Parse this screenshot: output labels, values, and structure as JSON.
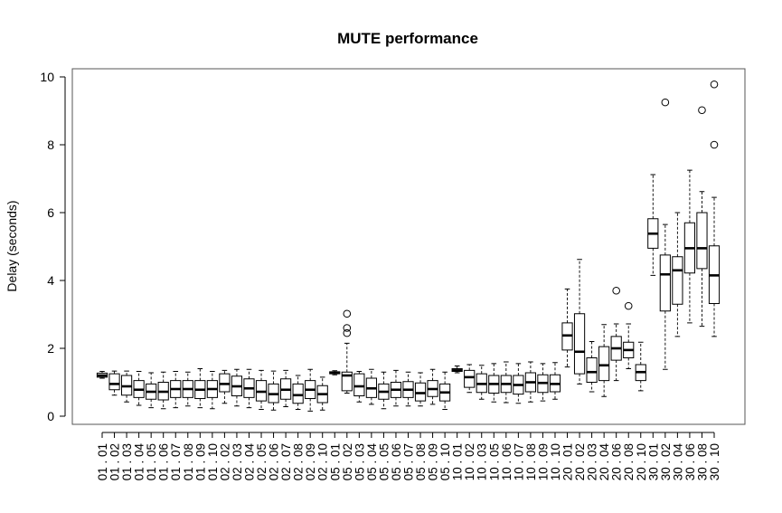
{
  "chart_data": {
    "type": "boxplot",
    "title": "MUTE performance",
    "xlabel": "",
    "ylabel": "Delay (seconds)",
    "ylim": [
      0,
      10
    ],
    "yticks": [
      0,
      2,
      4,
      6,
      8,
      10
    ],
    "grid": false,
    "categories": [
      "01 . 01",
      "01 . 02",
      "01 . 03",
      "01 . 04",
      "01 . 05",
      "01 . 06",
      "01 . 07",
      "01 . 08",
      "01 . 09",
      "01 . 10",
      "02 . 02",
      "02 . 03",
      "02 . 04",
      "02 . 05",
      "02 . 06",
      "02 . 07",
      "02 . 08",
      "02 . 09",
      "02 . 10",
      "05 . 01",
      "05 . 02",
      "05 . 03",
      "05 . 04",
      "05 . 05",
      "05 . 06",
      "05 . 07",
      "05 . 08",
      "05 . 09",
      "05 . 10",
      "10 . 01",
      "10 . 02",
      "10 . 03",
      "10 . 05",
      "10 . 06",
      "10 . 07",
      "10 . 08",
      "10 . 09",
      "10 . 10",
      "20 . 01",
      "20 . 02",
      "20 . 03",
      "20 . 04",
      "20 . 06",
      "20 . 08",
      "20 . 10",
      "30 . 01",
      "30 . 02",
      "30 . 04",
      "30 . 06",
      "30 . 08",
      "30 . 10"
    ],
    "boxes": [
      {
        "min": 1.12,
        "q1": 1.15,
        "median": 1.2,
        "q3": 1.27,
        "max": 1.32,
        "outliers": []
      },
      {
        "min": 0.62,
        "q1": 0.78,
        "median": 0.95,
        "q3": 1.25,
        "max": 1.33,
        "outliers": []
      },
      {
        "min": 0.42,
        "q1": 0.62,
        "median": 0.88,
        "q3": 1.2,
        "max": 1.33,
        "outliers": []
      },
      {
        "min": 0.32,
        "q1": 0.55,
        "median": 0.78,
        "q3": 1.05,
        "max": 1.32,
        "outliers": []
      },
      {
        "min": 0.25,
        "q1": 0.5,
        "median": 0.72,
        "q3": 0.95,
        "max": 1.28,
        "outliers": []
      },
      {
        "min": 0.22,
        "q1": 0.48,
        "median": 0.72,
        "q3": 1.0,
        "max": 1.3,
        "outliers": []
      },
      {
        "min": 0.25,
        "q1": 0.55,
        "median": 0.8,
        "q3": 1.05,
        "max": 1.32,
        "outliers": []
      },
      {
        "min": 0.3,
        "q1": 0.55,
        "median": 0.8,
        "q3": 1.05,
        "max": 1.3,
        "outliers": []
      },
      {
        "min": 0.25,
        "q1": 0.52,
        "median": 0.78,
        "q3": 1.05,
        "max": 1.4,
        "outliers": []
      },
      {
        "min": 0.22,
        "q1": 0.55,
        "median": 0.8,
        "q3": 1.05,
        "max": 1.32,
        "outliers": []
      },
      {
        "min": 0.38,
        "q1": 0.72,
        "median": 0.95,
        "q3": 1.25,
        "max": 1.35,
        "outliers": []
      },
      {
        "min": 0.3,
        "q1": 0.6,
        "median": 0.88,
        "q3": 1.18,
        "max": 1.38,
        "outliers": []
      },
      {
        "min": 0.25,
        "q1": 0.55,
        "median": 0.82,
        "q3": 1.1,
        "max": 1.38,
        "outliers": []
      },
      {
        "min": 0.2,
        "q1": 0.45,
        "median": 0.72,
        "q3": 1.05,
        "max": 1.35,
        "outliers": []
      },
      {
        "min": 0.18,
        "q1": 0.4,
        "median": 0.65,
        "q3": 0.95,
        "max": 1.33,
        "outliers": []
      },
      {
        "min": 0.28,
        "q1": 0.5,
        "median": 0.78,
        "q3": 1.1,
        "max": 1.35,
        "outliers": []
      },
      {
        "min": 0.2,
        "q1": 0.38,
        "median": 0.62,
        "q3": 0.95,
        "max": 1.2,
        "outliers": []
      },
      {
        "min": 0.15,
        "q1": 0.52,
        "median": 0.78,
        "q3": 1.05,
        "max": 1.38,
        "outliers": []
      },
      {
        "min": 0.18,
        "q1": 0.4,
        "median": 0.65,
        "q3": 0.9,
        "max": 1.15,
        "outliers": []
      },
      {
        "min": 1.22,
        "q1": 1.25,
        "median": 1.28,
        "q3": 1.31,
        "max": 1.34,
        "outliers": []
      },
      {
        "min": 0.68,
        "q1": 0.75,
        "median": 1.2,
        "q3": 1.3,
        "max": 2.15,
        "outliers": [
          2.45,
          2.6,
          3.02
        ]
      },
      {
        "min": 0.42,
        "q1": 0.6,
        "median": 0.88,
        "q3": 1.25,
        "max": 1.32,
        "outliers": []
      },
      {
        "min": 0.35,
        "q1": 0.55,
        "median": 0.82,
        "q3": 1.12,
        "max": 1.38,
        "outliers": []
      },
      {
        "min": 0.22,
        "q1": 0.5,
        "median": 0.72,
        "q3": 0.95,
        "max": 1.3,
        "outliers": []
      },
      {
        "min": 0.3,
        "q1": 0.55,
        "median": 0.78,
        "q3": 1.0,
        "max": 1.35,
        "outliers": []
      },
      {
        "min": 0.3,
        "q1": 0.55,
        "median": 0.78,
        "q3": 1.02,
        "max": 1.3,
        "outliers": []
      },
      {
        "min": 0.3,
        "q1": 0.45,
        "median": 0.68,
        "q3": 0.98,
        "max": 1.28,
        "outliers": []
      },
      {
        "min": 0.35,
        "q1": 0.58,
        "median": 0.8,
        "q3": 1.05,
        "max": 1.38,
        "outliers": []
      },
      {
        "min": 0.2,
        "q1": 0.45,
        "median": 0.7,
        "q3": 0.95,
        "max": 1.3,
        "outliers": []
      },
      {
        "min": 1.28,
        "q1": 1.32,
        "median": 1.35,
        "q3": 1.4,
        "max": 1.48,
        "outliers": []
      },
      {
        "min": 0.7,
        "q1": 0.85,
        "median": 1.15,
        "q3": 1.35,
        "max": 1.52,
        "outliers": []
      },
      {
        "min": 0.5,
        "q1": 0.7,
        "median": 0.95,
        "q3": 1.25,
        "max": 1.5,
        "outliers": []
      },
      {
        "min": 0.42,
        "q1": 0.68,
        "median": 0.95,
        "q3": 1.2,
        "max": 1.55,
        "outliers": []
      },
      {
        "min": 0.4,
        "q1": 0.7,
        "median": 0.95,
        "q3": 1.2,
        "max": 1.6,
        "outliers": []
      },
      {
        "min": 0.38,
        "q1": 0.65,
        "median": 0.92,
        "q3": 1.2,
        "max": 1.55,
        "outliers": []
      },
      {
        "min": 0.42,
        "q1": 0.72,
        "median": 1.0,
        "q3": 1.28,
        "max": 1.6,
        "outliers": []
      },
      {
        "min": 0.45,
        "q1": 0.7,
        "median": 0.98,
        "q3": 1.22,
        "max": 1.55,
        "outliers": []
      },
      {
        "min": 0.5,
        "q1": 0.72,
        "median": 0.95,
        "q3": 1.22,
        "max": 1.58,
        "outliers": []
      },
      {
        "min": 1.45,
        "q1": 1.95,
        "median": 2.38,
        "q3": 2.75,
        "max": 3.75,
        "outliers": []
      },
      {
        "min": 0.95,
        "q1": 1.25,
        "median": 1.9,
        "q3": 3.02,
        "max": 4.62,
        "outliers": []
      },
      {
        "min": 0.72,
        "q1": 1.0,
        "median": 1.3,
        "q3": 1.72,
        "max": 2.2,
        "outliers": []
      },
      {
        "min": 0.58,
        "q1": 1.05,
        "median": 1.5,
        "q3": 2.05,
        "max": 2.7,
        "outliers": []
      },
      {
        "min": 1.05,
        "q1": 1.65,
        "median": 2.0,
        "q3": 2.35,
        "max": 2.72,
        "outliers": [
          3.7
        ]
      },
      {
        "min": 1.4,
        "q1": 1.72,
        "median": 1.95,
        "q3": 2.18,
        "max": 2.72,
        "outliers": [
          3.25
        ]
      },
      {
        "min": 0.75,
        "q1": 1.05,
        "median": 1.3,
        "q3": 1.52,
        "max": 2.18,
        "outliers": []
      },
      {
        "min": 4.15,
        "q1": 4.95,
        "median": 5.38,
        "q3": 5.82,
        "max": 7.12,
        "outliers": []
      },
      {
        "min": 1.38,
        "q1": 3.1,
        "median": 4.18,
        "q3": 4.75,
        "max": 5.65,
        "outliers": [
          9.25
        ]
      },
      {
        "min": 2.35,
        "q1": 3.3,
        "median": 4.3,
        "q3": 4.7,
        "max": 6.0,
        "outliers": []
      },
      {
        "min": 2.75,
        "q1": 4.22,
        "median": 4.95,
        "q3": 5.7,
        "max": 7.25,
        "outliers": []
      },
      {
        "min": 2.65,
        "q1": 4.35,
        "median": 4.95,
        "q3": 6.0,
        "max": 6.62,
        "outliers": [
          9.02
        ]
      },
      {
        "min": 2.35,
        "q1": 3.32,
        "median": 4.15,
        "q3": 5.02,
        "max": 6.45,
        "outliers": [
          8.0,
          9.78
        ]
      }
    ]
  }
}
